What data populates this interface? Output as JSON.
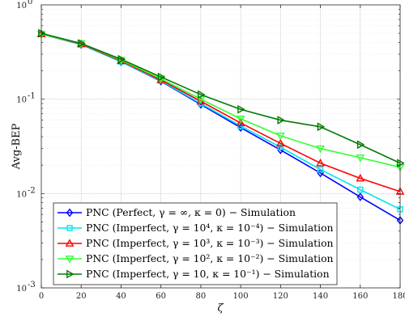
{
  "chart_data": {
    "type": "line",
    "xlabel": "ζ",
    "ylabel": "Avg-BEP",
    "xlim": [
      0,
      180
    ],
    "ylim": [
      0.001,
      1
    ],
    "yscale": "log",
    "grid": true,
    "legend_position": "bottom-left",
    "x": [
      0,
      20,
      40,
      60,
      80,
      100,
      120,
      140,
      160,
      180
    ],
    "x_tick_labels": [
      "0",
      "20",
      "40",
      "60",
      "80",
      "100",
      "120",
      "140",
      "160",
      "180"
    ],
    "y_tick_labels": [
      {
        "base": "10",
        "exp": "0",
        "value": 1
      },
      {
        "base": "10",
        "exp": "-1",
        "value": 0.1
      },
      {
        "base": "10",
        "exp": "-2",
        "value": 0.01
      },
      {
        "base": "10",
        "exp": "-3",
        "value": 0.001
      }
    ],
    "series": [
      {
        "name": "PNC (Perfect, γ = ∞, κ = 0) − Simulation",
        "color": "#0000ff",
        "marker": "diamond",
        "values": [
          0.49,
          0.38,
          0.25,
          0.155,
          0.088,
          0.05,
          0.029,
          0.0165,
          0.0092,
          0.0052
        ]
      },
      {
        "name": "PNC (Imperfect, γ = 10⁴, κ = 10⁻⁴) − Simulation",
        "color": "#00e5ee",
        "marker": "square",
        "values": [
          0.49,
          0.38,
          0.25,
          0.157,
          0.09,
          0.052,
          0.031,
          0.018,
          0.011,
          0.0068
        ]
      },
      {
        "name": "PNC (Imperfect, γ = 10³, κ = 10⁻³) − Simulation",
        "color": "#ff0000",
        "marker": "triangle-up",
        "values": [
          0.49,
          0.385,
          0.255,
          0.16,
          0.095,
          0.056,
          0.034,
          0.021,
          0.0145,
          0.0105
        ]
      },
      {
        "name": "PNC (Imperfect, γ = 10², κ = 10⁻²) − Simulation",
        "color": "#33ff33",
        "marker": "triangle-down",
        "values": [
          0.49,
          0.39,
          0.26,
          0.165,
          0.1,
          0.062,
          0.041,
          0.03,
          0.024,
          0.019
        ]
      },
      {
        "name": "PNC (Imperfect, γ = 10, κ = 10⁻¹) − Simulation",
        "color": "#007a00",
        "marker": "triangle-right",
        "values": [
          0.5,
          0.39,
          0.265,
          0.172,
          0.112,
          0.078,
          0.06,
          0.051,
          0.033,
          0.021
        ]
      }
    ]
  }
}
